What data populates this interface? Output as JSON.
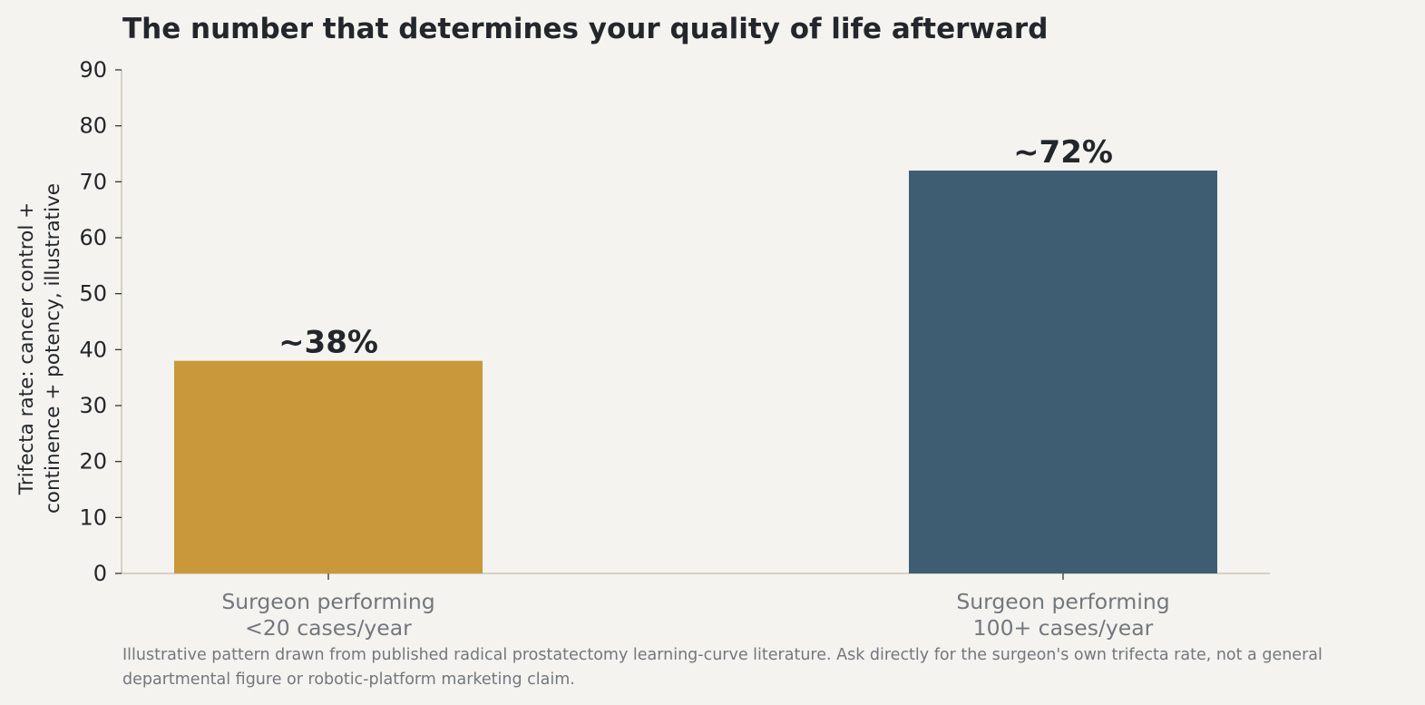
{
  "chart_data": {
    "type": "bar",
    "title": "The number that determines your quality of life afterward",
    "ylabel": [
      "Trifecta rate: cancer control +",
      "continence + potency, illustrative"
    ],
    "xlabel": "",
    "categories": [
      [
        "Surgeon performing",
        "<20 cases/year"
      ],
      [
        "Surgeon performing",
        "100+ cases/year"
      ]
    ],
    "values": [
      38,
      72
    ],
    "data_labels": [
      "~38%",
      "~72%"
    ],
    "colors": [
      "#c9983a",
      "#3e5d73"
    ],
    "ylim": [
      0,
      90
    ],
    "yticks": [
      0,
      10,
      20,
      30,
      40,
      50,
      60,
      70,
      80,
      90
    ],
    "grid": false,
    "footnote": "Illustrative pattern drawn from published radical prostatectomy learning-curve literature. Ask directly for the surgeon's own trifecta rate, not a general departmental figure or robotic-platform marketing claim."
  }
}
